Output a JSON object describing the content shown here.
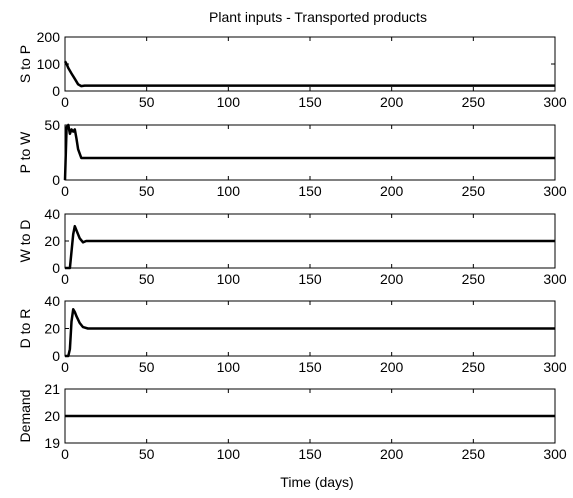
{
  "chart_data": {
    "type": "line",
    "title": "Plant inputs - Transported products",
    "xlabel": "Time (days)",
    "xlim": [
      0,
      300
    ],
    "xticks": [
      "0",
      "50",
      "100",
      "150",
      "200",
      "250",
      "300"
    ],
    "grid": false,
    "line_color": "#000000",
    "panels": [
      {
        "ylabel": "S to P",
        "ylim": [
          0,
          200
        ],
        "yticks": [
          "0",
          "100",
          "200"
        ],
        "series": [
          {
            "x": [
              0,
              1,
              2,
              4,
              6,
              8,
              10,
              12,
              300
            ],
            "y": [
              110,
              100,
              85,
              65,
              45,
              25,
              18,
              20,
              20
            ]
          }
        ]
      },
      {
        "ylabel": "P to W",
        "ylim": [
          0,
          50
        ],
        "yticks": [
          "0",
          "50"
        ],
        "series": [
          {
            "x": [
              0,
              1,
              2,
              3,
              4,
              5,
              6,
              7,
              8,
              10,
              12,
              300
            ],
            "y": [
              0,
              48,
              50,
              42,
              46,
              44,
              46,
              38,
              28,
              20,
              20,
              20
            ]
          }
        ]
      },
      {
        "ylabel": "W to D",
        "ylim": [
          0,
          40
        ],
        "yticks": [
          "0",
          "20",
          "40"
        ],
        "series": [
          {
            "x": [
              0,
              3,
              5,
              6,
              7,
              9,
              11,
              13,
              15,
              300
            ],
            "y": [
              0,
              0,
              25,
              31,
              28,
              22,
              19,
              20,
              20,
              20
            ]
          }
        ]
      },
      {
        "ylabel": "D to R",
        "ylim": [
          0,
          40
        ],
        "yticks": [
          "0",
          "20",
          "40"
        ],
        "series": [
          {
            "x": [
              0,
              2,
              3,
              4,
              5,
              6,
              7,
              9,
              11,
              14,
              300
            ],
            "y": [
              0,
              0,
              5,
              25,
              34,
              32,
              29,
              24,
              21,
              20,
              20
            ]
          }
        ]
      },
      {
        "ylabel": "Demand",
        "ylim": [
          19,
          21
        ],
        "yticks": [
          "19",
          "20",
          "21"
        ],
        "series": [
          {
            "x": [
              0,
              300
            ],
            "y": [
              20,
              20
            ]
          }
        ]
      }
    ]
  }
}
